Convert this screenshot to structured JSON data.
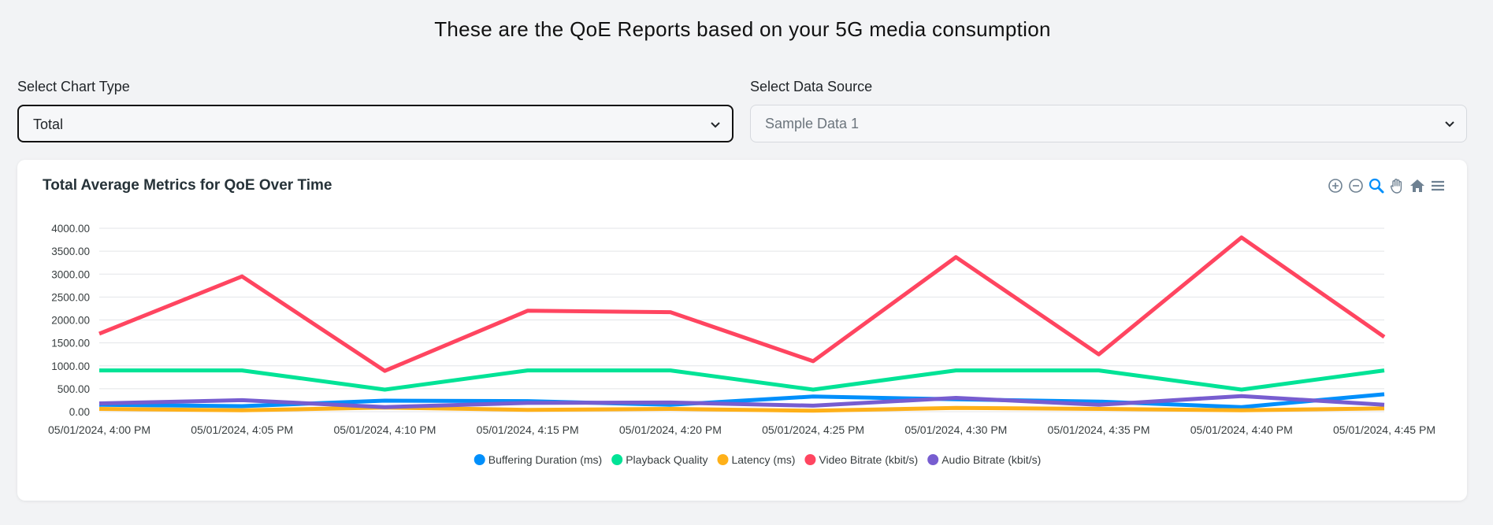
{
  "header": {
    "title": "These are the QoE Reports based on your 5G media consumption"
  },
  "controls": {
    "chart_type": {
      "label": "Select Chart Type",
      "value": "Total"
    },
    "data_source": {
      "label": "Select Data Source",
      "value": "Sample Data 1"
    }
  },
  "toolbar": {
    "icons": [
      "zoom-in-icon",
      "zoom-out-icon",
      "selection-zoom-icon",
      "pan-icon",
      "reset-home-icon",
      "menu-icon"
    ],
    "active_color": "#008ffb",
    "idle_color": "#6e8192"
  },
  "chart_data": {
    "type": "line",
    "title": "Total Average Metrics for QoE Over Time",
    "xlabel": "",
    "ylabel": "",
    "categories": [
      "05/01/2024, 4:00 PM",
      "05/01/2024, 4:05 PM",
      "05/01/2024, 4:10 PM",
      "05/01/2024, 4:15 PM",
      "05/01/2024, 4:20 PM",
      "05/01/2024, 4:25 PM",
      "05/01/2024, 4:30 PM",
      "05/01/2024, 4:35 PM",
      "05/01/2024, 4:40 PM",
      "05/01/2024, 4:45 PM"
    ],
    "ylim": [
      0,
      4000
    ],
    "yticks": [
      "0.00",
      "500.00",
      "1000.00",
      "1500.00",
      "2000.00",
      "2500.00",
      "3000.00",
      "3500.00",
      "4000.00"
    ],
    "grid": true,
    "legend_position": "bottom-center",
    "series": [
      {
        "name": "Buffering Duration (ms)",
        "color": "#008ffb",
        "values": [
          150,
          120,
          240,
          230,
          150,
          330,
          270,
          220,
          100,
          380
        ]
      },
      {
        "name": "Playback Quality",
        "color": "#00e396",
        "values": [
          900,
          900,
          480,
          900,
          900,
          480,
          900,
          900,
          480,
          900
        ]
      },
      {
        "name": "Latency (ms)",
        "color": "#feb019",
        "values": [
          60,
          30,
          90,
          40,
          60,
          20,
          80,
          60,
          30,
          70
        ]
      },
      {
        "name": "Video Bitrate (kbit/s)",
        "color": "#ff4560",
        "values": [
          1700,
          2950,
          890,
          2200,
          2170,
          1100,
          3370,
          1250,
          3800,
          1630
        ]
      },
      {
        "name": "Audio Bitrate (kbit/s)",
        "color": "#775dd0",
        "values": [
          180,
          250,
          100,
          190,
          200,
          130,
          300,
          150,
          340,
          150
        ]
      }
    ]
  }
}
